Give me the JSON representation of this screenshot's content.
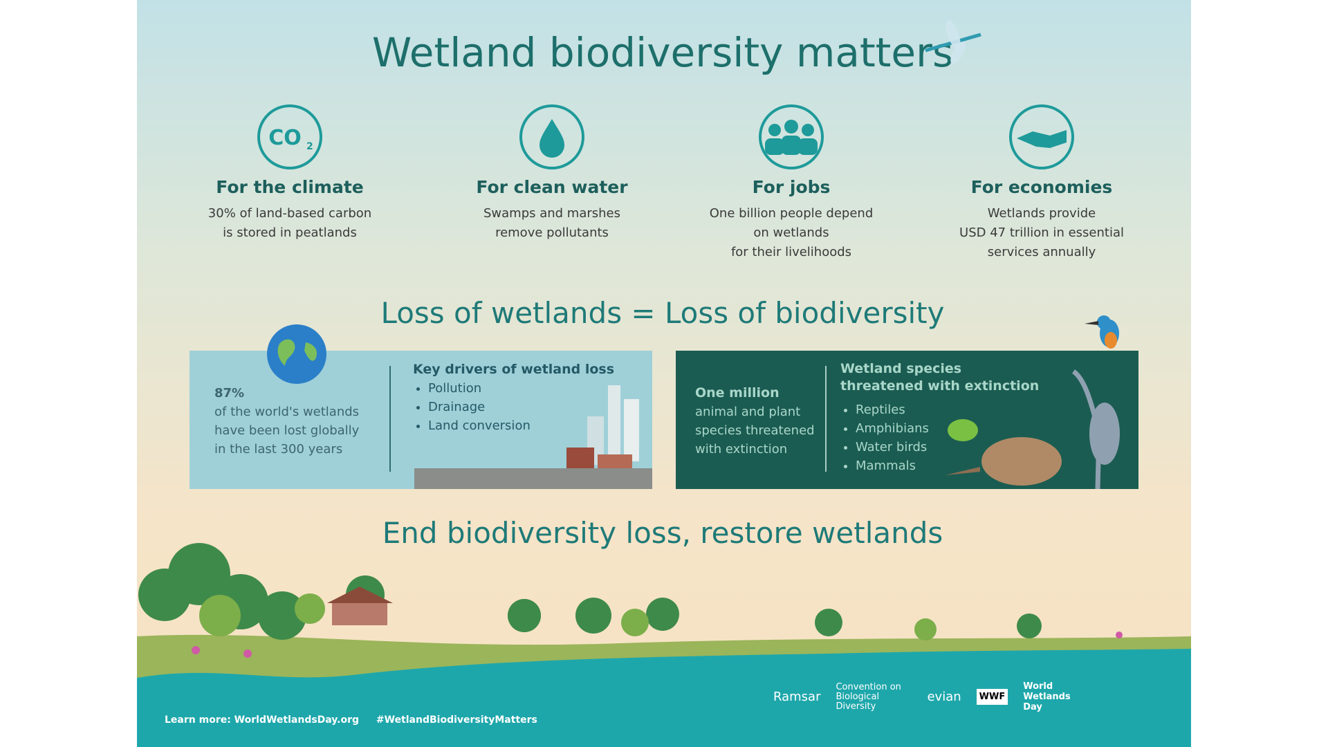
{
  "title": "Wetland biodiversity matters",
  "benefits": [
    {
      "icon_text": "CO",
      "icon_sub": "2",
      "heading": "For the climate",
      "lines": [
        "30% of land-based carbon",
        "is stored in peatlands"
      ]
    },
    {
      "heading": "For clean water",
      "lines": [
        "Swamps and marshes",
        "remove pollutants"
      ]
    },
    {
      "heading": "For jobs",
      "lines": [
        "One billion people depend",
        "on wetlands",
        "for their livelihoods"
      ]
    },
    {
      "heading": "For economies",
      "lines": [
        "Wetlands provide",
        "USD 47 trillion in essential",
        "services annually"
      ]
    }
  ],
  "loss_heading": "Loss of wetlands = Loss of biodiversity",
  "left_panel": {
    "stat": "87%",
    "stat_lines": [
      "of the world's wetlands",
      "have been lost globally",
      "in the last 300 years"
    ],
    "drivers_heading": "Key drivers of wetland loss",
    "drivers": [
      "Pollution",
      "Drainage",
      "Land conversion"
    ]
  },
  "right_panel": {
    "stat": "One million",
    "stat_lines": [
      "animal and plant",
      "species threatened",
      "with extinction"
    ],
    "species_heading": [
      "Wetland species",
      "threatened with extinction"
    ],
    "species": [
      "Reptiles",
      "Amphibians",
      "Water birds",
      "Mammals"
    ]
  },
  "end_heading": "End biodiversity loss, restore wetlands",
  "footer": {
    "learn_more": "Learn more: WorldWetlandsDay.org",
    "hashtag": "#WetlandBiodiversityMatters"
  },
  "logos": [
    "Ramsar",
    "Convention on Biological Diversity",
    "evian",
    "WWF",
    "World Wetlands Day"
  ]
}
